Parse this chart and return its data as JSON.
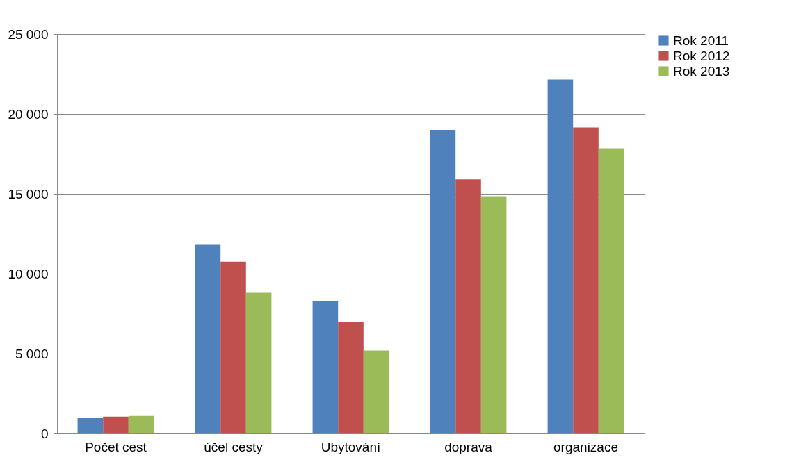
{
  "chart_data": {
    "type": "bar",
    "categories": [
      "Počet cest",
      "účel cesty",
      "Ubytování",
      "doprava",
      "organizace"
    ],
    "series": [
      {
        "name": "Rok 2011",
        "color": "#4f81bd",
        "values": [
          1000,
          11850,
          8300,
          19000,
          22150
        ]
      },
      {
        "name": "Rok 2012",
        "color": "#c0504d",
        "values": [
          1050,
          10750,
          7000,
          15900,
          19150
        ]
      },
      {
        "name": "Rok 2013",
        "color": "#9bbb59",
        "values": [
          1100,
          8800,
          5200,
          14850,
          17850
        ]
      }
    ],
    "ylim": [
      0,
      25000
    ],
    "yticks": [
      {
        "value": 0,
        "label": "0"
      },
      {
        "value": 5000,
        "label": "5 000"
      },
      {
        "value": 10000,
        "label": "10 000"
      },
      {
        "value": 15000,
        "label": "15 000"
      },
      {
        "value": 20000,
        "label": "20 000"
      },
      {
        "value": 25000,
        "label": "25 000"
      }
    ],
    "grid": "y",
    "legend": "right"
  }
}
